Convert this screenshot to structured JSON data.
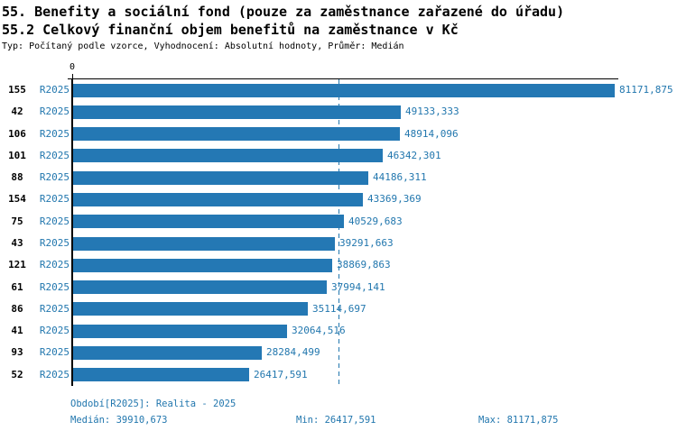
{
  "report": {
    "title_line1": "55. Benefity a sociální fond (pouze za zaměstnance zařazené do úřadu)",
    "title_line2": "55.2 Celkový finanční objem benefitů na zaměstnance v Kč",
    "subtitle": "Typ: Počítaný podle vzorce, Vyhodnocení: Absolutní hodnoty, Průměr: Medián"
  },
  "chart_data": {
    "type": "bar",
    "orientation": "horizontal",
    "axis_zero_label": "0",
    "series_label": "R2025",
    "categories": [
      "155",
      "42",
      "106",
      "101",
      "88",
      "154",
      "75",
      "43",
      "121",
      "61",
      "86",
      "41",
      "93",
      "52"
    ],
    "values": [
      81171.875,
      49133.333,
      48914.096,
      46342.301,
      44186.311,
      43369.369,
      40529.683,
      39291.663,
      38869.863,
      37994.141,
      35114.697,
      32064.516,
      28284.499,
      26417.591
    ],
    "value_labels": [
      "81171,875",
      "49133,333",
      "48914,096",
      "46342,301",
      "44186,311",
      "43369,369",
      "40529,683",
      "39291,663",
      "38869,863",
      "37994,141",
      "35114,697",
      "32064,516",
      "28284,499",
      "26417,591"
    ],
    "xlim": [
      0,
      81171.875
    ],
    "median_value": 39910.673,
    "grid": false,
    "legend_position": "none"
  },
  "footer": {
    "period": "Období[R2025]: Realita - 2025",
    "median": "Medián: 39910,673",
    "min": "Min: 26417,591",
    "max": "Max: 81171,875"
  },
  "colors": {
    "bar": "#2478b4",
    "blue_text": "#2277ae",
    "axis": "#000000"
  }
}
